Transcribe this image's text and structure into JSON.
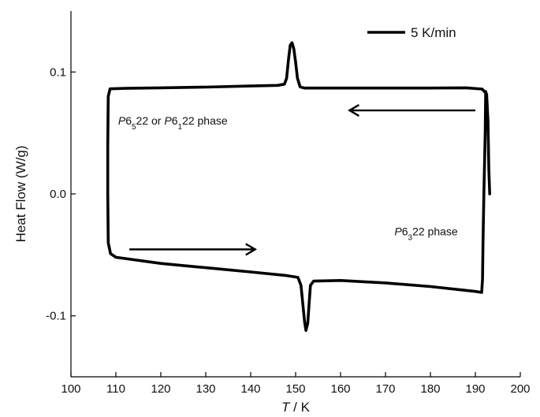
{
  "chart_data": {
    "type": "line",
    "xlabel": {
      "italic": "T",
      "rest": " / K"
    },
    "ylabel": "Heat Flow (W/g)",
    "xlim": [
      100,
      200
    ],
    "ylim": [
      -0.15,
      0.15
    ],
    "xticks": [
      {
        "value": 100,
        "label": "100"
      },
      {
        "value": 110,
        "label": "110"
      },
      {
        "value": 120,
        "label": "120"
      },
      {
        "value": 130,
        "label": "130"
      },
      {
        "value": 140,
        "label": "140"
      },
      {
        "value": 150,
        "label": "150"
      },
      {
        "value": 160,
        "label": "160"
      },
      {
        "value": 170,
        "label": "170"
      },
      {
        "value": 180,
        "label": "180"
      },
      {
        "value": 190,
        "label": "190"
      },
      {
        "value": 200,
        "label": "200"
      }
    ],
    "yticks": [
      {
        "value": -0.1,
        "label": "-0.1"
      },
      {
        "value": 0.0,
        "label": "0.0"
      },
      {
        "value": 0.1,
        "label": "0.1"
      }
    ],
    "grid": false,
    "legend": {
      "position": "top-right",
      "entries": [
        {
          "label": "5 K/min",
          "color": "#000000"
        }
      ]
    },
    "series": [
      {
        "name": "5 K/min",
        "color": "#000000",
        "points": [
          [
            193.2,
            0.0
          ],
          [
            193.0,
            0.02
          ],
          [
            192.8,
            0.06
          ],
          [
            192.5,
            0.082
          ],
          [
            191.5,
            0.086
          ],
          [
            188.0,
            0.087
          ],
          [
            180.0,
            0.0868
          ],
          [
            170.0,
            0.0868
          ],
          [
            160.0,
            0.0868
          ],
          [
            152.0,
            0.0868
          ],
          [
            151.0,
            0.0878
          ],
          [
            150.4,
            0.095
          ],
          [
            150.0,
            0.108
          ],
          [
            149.6,
            0.119
          ],
          [
            149.2,
            0.124
          ],
          [
            148.8,
            0.122
          ],
          [
            148.4,
            0.11
          ],
          [
            148.0,
            0.095
          ],
          [
            147.5,
            0.09
          ],
          [
            146.0,
            0.089
          ],
          [
            140.0,
            0.0885
          ],
          [
            130.0,
            0.0876
          ],
          [
            120.0,
            0.087
          ],
          [
            112.0,
            0.0866
          ],
          [
            108.7,
            0.0862
          ],
          [
            108.3,
            0.08
          ],
          [
            108.2,
            0.04
          ],
          [
            108.2,
            0.0
          ],
          [
            108.3,
            -0.04
          ],
          [
            108.8,
            -0.049
          ],
          [
            110.0,
            -0.052
          ],
          [
            120.0,
            -0.057
          ],
          [
            130.0,
            -0.0605
          ],
          [
            140.0,
            -0.064
          ],
          [
            148.0,
            -0.067
          ],
          [
            150.5,
            -0.0685
          ],
          [
            151.2,
            -0.075
          ],
          [
            151.6,
            -0.09
          ],
          [
            152.0,
            -0.105
          ],
          [
            152.3,
            -0.112
          ],
          [
            152.7,
            -0.106
          ],
          [
            153.0,
            -0.09
          ],
          [
            153.3,
            -0.075
          ],
          [
            154.0,
            -0.0715
          ],
          [
            160.0,
            -0.071
          ],
          [
            170.0,
            -0.073
          ],
          [
            180.0,
            -0.076
          ],
          [
            190.0,
            -0.08
          ],
          [
            191.4,
            -0.0808
          ],
          [
            191.6,
            -0.07
          ],
          [
            191.7,
            -0.04
          ],
          [
            191.9,
            0.0
          ],
          [
            192.2,
            0.05
          ],
          [
            192.3,
            0.084
          ]
        ]
      }
    ],
    "annotations": [
      {
        "id": "cool-phase",
        "x": 110.5,
        "y": 0.057,
        "parts": [
          {
            "text": "P",
            "style": "italic"
          },
          {
            "text": "6"
          },
          {
            "text": "5",
            "style": "sub"
          },
          {
            "text": "22 or "
          },
          {
            "text": "P",
            "style": "italic"
          },
          {
            "text": "6"
          },
          {
            "text": "1",
            "style": "sub"
          },
          {
            "text": "22 phase"
          }
        ]
      },
      {
        "id": "heat-phase",
        "x": 172.0,
        "y": -0.034,
        "parts": [
          {
            "text": "P",
            "style": "italic"
          },
          {
            "text": "6"
          },
          {
            "text": "3",
            "style": "sub"
          },
          {
            "text": "22 phase"
          }
        ]
      }
    ],
    "arrows": [
      {
        "id": "cooling",
        "from": [
          190.0,
          0.0685
        ],
        "to": [
          162.0,
          0.0685
        ]
      },
      {
        "id": "heating",
        "from": [
          113.0,
          -0.0455
        ],
        "to": [
          141.0,
          -0.0455
        ]
      }
    ]
  }
}
